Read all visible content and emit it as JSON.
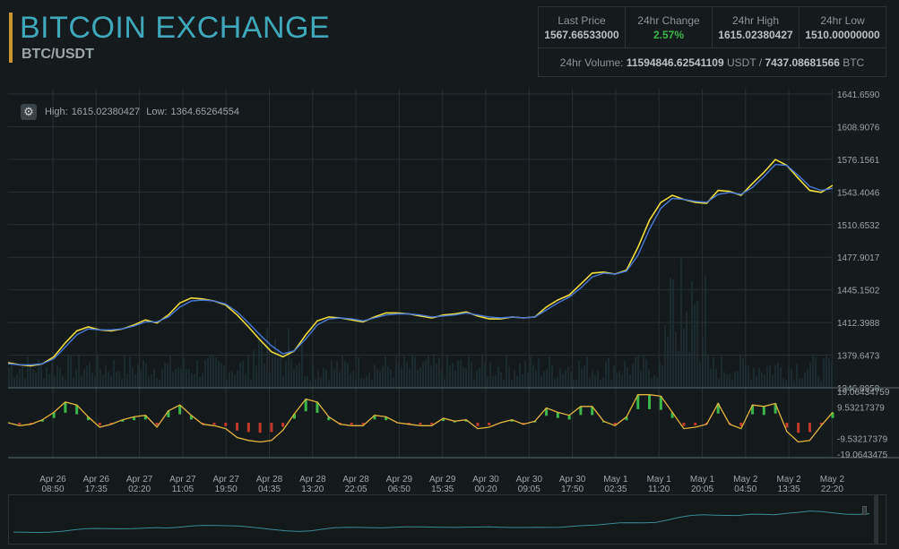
{
  "header": {
    "title": "BITCOIN EXCHANGE",
    "pair": "BTC/USDT"
  },
  "stats": {
    "last_price_label": "Last Price",
    "last_price": "1567.66533000",
    "change_label": "24hr Change",
    "change": "2.57%",
    "high_label": "24hr High",
    "high": "1615.02380427",
    "low_label": "24hr Low",
    "low": "1510.00000000",
    "volume_label": "24hr Volume:",
    "volume_usdt": "11594846.62541109",
    "volume_usdt_unit": "USDT /",
    "volume_btc": "7437.08681566",
    "volume_btc_unit": "BTC"
  },
  "chart_info": {
    "high_label": "High:",
    "high_value": "1615.02380427",
    "low_label": "Low:",
    "low_value": "1364.65264554",
    "settings_icon": "gear-icon"
  },
  "colors": {
    "accent": "#3fa8bb",
    "title_bar": "#c8962c",
    "price_line": "#f0dc3c",
    "ma_line": "#4a78d8",
    "positive": "#3cb54a",
    "negative": "#c0392b"
  },
  "chart_data": {
    "type": "line",
    "price_axis": [
      "1641.6590",
      "1608.9076",
      "1576.1561",
      "1543.4046",
      "1510.6532",
      "1477.9017",
      "1445.1502",
      "1412.3988",
      "1379.6473",
      "1346.8958"
    ],
    "price_ylim": [
      1346.8958,
      1641.659
    ],
    "indicator_axis": [
      "19.06434759",
      "9.53217379",
      "-9.53217379",
      "-19.0643475"
    ],
    "x_labels": [
      {
        "d": "Apr 26",
        "t": "08:50"
      },
      {
        "d": "Apr 26",
        "t": "17:35"
      },
      {
        "d": "Apr 27",
        "t": "02:20"
      },
      {
        "d": "Apr 27",
        "t": "11:05"
      },
      {
        "d": "Apr 27",
        "t": "19:50"
      },
      {
        "d": "Apr 28",
        "t": "04:35"
      },
      {
        "d": "Apr 28",
        "t": "13:20"
      },
      {
        "d": "Apr 28",
        "t": "22:05"
      },
      {
        "d": "Apr 29",
        "t": "06:50"
      },
      {
        "d": "Apr 29",
        "t": "15:35"
      },
      {
        "d": "Apr 30",
        "t": "00:20"
      },
      {
        "d": "Apr 30",
        "t": "09:05"
      },
      {
        "d": "Apr 30",
        "t": "17:50"
      },
      {
        "d": "May 1",
        "t": "02:35"
      },
      {
        "d": "May 1",
        "t": "11:20"
      },
      {
        "d": "May 1",
        "t": "20:05"
      },
      {
        "d": "May 2",
        "t": "04:50"
      },
      {
        "d": "May 2",
        "t": "13:35"
      },
      {
        "d": "May 2",
        "t": "22:20"
      }
    ],
    "series": [
      {
        "values": [
          1372,
          1370,
          1369,
          1371,
          1378,
          1392,
          1404,
          1408,
          1405,
          1404,
          1406,
          1410,
          1415,
          1412,
          1420,
          1432,
          1437,
          1436,
          1434,
          1430,
          1420,
          1408,
          1395,
          1383,
          1378,
          1384,
          1400,
          1414,
          1418,
          1417,
          1415,
          1413,
          1418,
          1422,
          1422,
          1421,
          1419,
          1417,
          1420,
          1421,
          1423,
          1419,
          1416,
          1416,
          1418,
          1417,
          1418,
          1428,
          1435,
          1440,
          1451,
          1462,
          1463,
          1461,
          1465,
          1488,
          1515,
          1533,
          1540,
          1536,
          1533,
          1532,
          1545,
          1544,
          1540,
          1552,
          1563,
          1576,
          1570,
          1557,
          1545,
          1543,
          1550
        ]
      },
      {
        "values": [
          1371,
          1370,
          1370,
          1371,
          1376,
          1388,
          1400,
          1406,
          1405,
          1405,
          1406,
          1409,
          1413,
          1413,
          1418,
          1428,
          1434,
          1435,
          1434,
          1431,
          1423,
          1412,
          1400,
          1389,
          1381,
          1384,
          1396,
          1410,
          1416,
          1417,
          1416,
          1414,
          1417,
          1420,
          1421,
          1421,
          1420,
          1418,
          1419,
          1420,
          1422,
          1420,
          1418,
          1417,
          1418,
          1417,
          1418,
          1425,
          1432,
          1438,
          1447,
          1458,
          1462,
          1461,
          1464,
          1480,
          1506,
          1527,
          1537,
          1536,
          1534,
          1533,
          1541,
          1543,
          1541,
          1548,
          1559,
          1571,
          1570,
          1560,
          1549,
          1545,
          1547
        ]
      }
    ]
  },
  "navigator": {
    "label": ""
  }
}
